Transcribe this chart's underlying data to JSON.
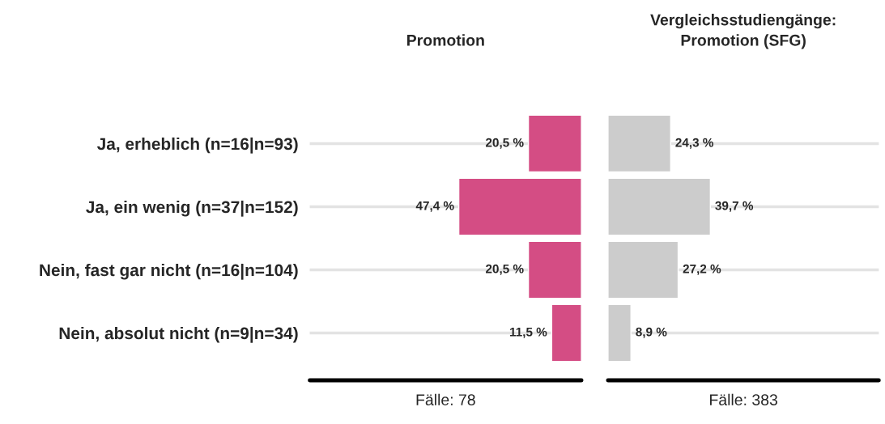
{
  "chart_data": [
    {
      "type": "bar",
      "orientation": "horizontal",
      "title": "Promotion",
      "xlabel": "Fälle: 78",
      "categories": [
        "Ja, erheblich (n=16|n=93)",
        "Ja, ein wenig (n=37|n=152)",
        "Nein, fast gar nicht (n=16|n=104)",
        "Nein, absolut nicht (n=9|n=34)"
      ],
      "values": [
        20.5,
        47.4,
        20.5,
        11.5
      ],
      "value_labels": [
        "20,5 %",
        "47,4 %",
        "20,5 %",
        "11,5 %"
      ],
      "color": "#d44d84",
      "xlim": [
        105,
        0
      ],
      "grid": "y",
      "tick_labels": "y"
    },
    {
      "type": "bar",
      "orientation": "horizontal",
      "title": "Vergleichsstudiengänge:\nPromotion (SFG)",
      "xlabel": "Fälle: 383",
      "categories": [
        null,
        null,
        null,
        null
      ],
      "values": [
        24.3,
        39.7,
        27.2,
        8.9
      ],
      "value_labels": [
        "24,3 %",
        "39,7 %",
        "27,2 %",
        "8,9 %"
      ],
      "color": "#cccccc",
      "xlim": [
        0,
        105
      ],
      "grid": "y",
      "tick_labels": false
    }
  ]
}
